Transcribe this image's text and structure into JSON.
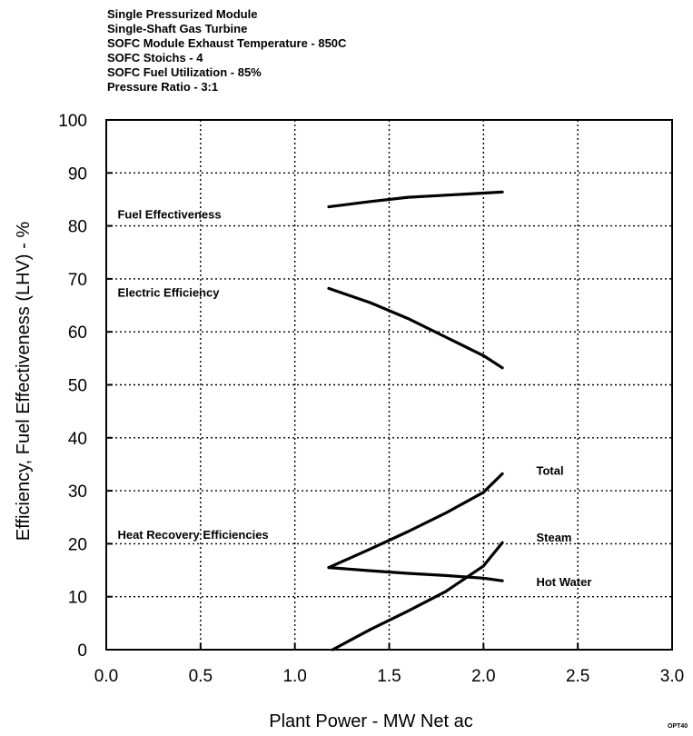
{
  "chart_data": {
    "type": "line",
    "conditions": [
      "Single Pressurized Module",
      "Single-Shaft Gas Turbine",
      "SOFC Module Exhaust Temperature - 850C",
      "SOFC Stoichs - 4",
      "SOFC Fuel Utilization - 85%",
      "Pressure Ratio - 3:1"
    ],
    "xlabel": "Plant Power  -  MW Net ac",
    "ylabel": "Efficiency, Fuel Effectiveness (LHV)  -  %",
    "xlim": [
      0.0,
      3.0
    ],
    "ylim": [
      0,
      100
    ],
    "x_ticks": [
      "0.0",
      "0.5",
      "1.0",
      "1.5",
      "2.0",
      "2.5",
      "3.0"
    ],
    "y_ticks": [
      "0",
      "10",
      "20",
      "30",
      "40",
      "50",
      "60",
      "70",
      "80",
      "90",
      "100"
    ],
    "grid": true,
    "series": [
      {
        "name": "Fuel Effectiveness",
        "x": [
          1.18,
          1.4,
          1.6,
          1.8,
          2.0,
          2.1
        ],
        "y": [
          83.6,
          84.6,
          85.4,
          85.8,
          86.2,
          86.4
        ]
      },
      {
        "name": "Electric Efficiency",
        "x": [
          1.18,
          1.4,
          1.6,
          1.8,
          2.0,
          2.1
        ],
        "y": [
          68.2,
          65.5,
          62.5,
          59.0,
          55.5,
          53.2
        ]
      },
      {
        "name": "Total",
        "x": [
          1.18,
          1.4,
          1.6,
          1.8,
          2.0,
          2.1
        ],
        "y": [
          15.5,
          19.0,
          22.3,
          25.8,
          29.7,
          33.2
        ]
      },
      {
        "name": "Steam",
        "x": [
          1.2,
          1.4,
          1.6,
          1.8,
          2.0,
          2.1
        ],
        "y": [
          0.0,
          3.8,
          7.3,
          11.0,
          15.8,
          20.2
        ]
      },
      {
        "name": "Hot Water",
        "x": [
          1.18,
          1.4,
          1.6,
          1.8,
          2.0,
          2.1
        ],
        "y": [
          15.5,
          14.9,
          14.4,
          14.0,
          13.5,
          13.0
        ]
      }
    ],
    "annotations": [
      {
        "text": "Fuel Effectiveness",
        "x": 0.06,
        "y": 81.4
      },
      {
        "text": "Electric Efficiency",
        "x": 0.06,
        "y": 66.6
      },
      {
        "text": "Heat Recovery Efficiencies",
        "x": 0.06,
        "y": 20.9
      },
      {
        "text": "Total",
        "x": 2.28,
        "y": 33.0
      },
      {
        "text": "Steam",
        "x": 2.28,
        "y": 20.4
      },
      {
        "text": "Hot Water",
        "x": 2.28,
        "y": 12.0
      }
    ],
    "figure_code": "OPT40"
  }
}
